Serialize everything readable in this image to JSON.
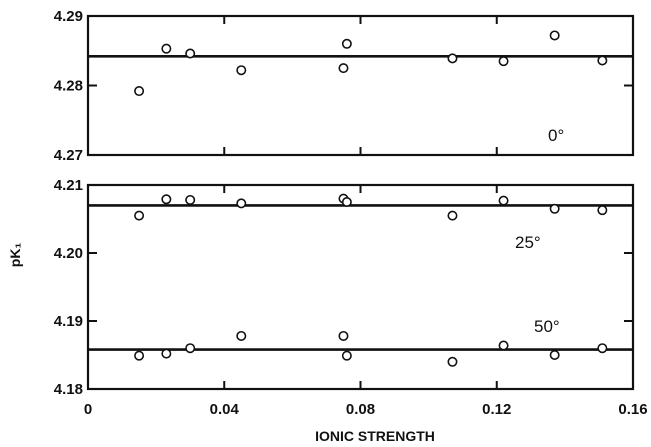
{
  "chart_data": {
    "type": "scatter",
    "xlabel": "IONIC STRENGTH",
    "ylabel": "pK₁",
    "xlim": [
      0,
      0.16
    ],
    "x_ticks": [
      0,
      0.04,
      0.08,
      0.12,
      0.16
    ],
    "x_tick_labels": [
      "0",
      "0.04",
      "0.08",
      "0.12",
      "0.16"
    ],
    "grid": false,
    "legend": "none",
    "panels": [
      {
        "ylim": [
          4.27,
          4.29
        ],
        "y_ticks": [
          4.27,
          4.28,
          4.29
        ],
        "y_tick_labels": [
          "4.27",
          "4.28",
          "4.29"
        ],
        "series": [
          {
            "name": "0°",
            "fit_line": 4.2842,
            "points": [
              [
                0.015,
                4.2792
              ],
              [
                0.023,
                4.2853
              ],
              [
                0.03,
                4.2846
              ],
              [
                0.045,
                4.2822
              ],
              [
                0.075,
                4.2825
              ],
              [
                0.076,
                4.286
              ],
              [
                0.107,
                4.2839
              ],
              [
                0.122,
                4.2835
              ],
              [
                0.137,
                4.2872
              ],
              [
                0.151,
                4.2836
              ]
            ]
          }
        ]
      },
      {
        "ylim": [
          4.18,
          4.21
        ],
        "y_ticks": [
          4.18,
          4.19,
          4.2,
          4.21
        ],
        "y_tick_labels": [
          "4.18",
          "4.19",
          "4.20",
          "4.21"
        ],
        "series": [
          {
            "name": "25°",
            "fit_line": 4.207,
            "points": [
              [
                0.015,
                4.2055
              ],
              [
                0.023,
                4.2079
              ],
              [
                0.03,
                4.2078
              ],
              [
                0.045,
                4.2073
              ],
              [
                0.075,
                4.208
              ],
              [
                0.076,
                4.2075
              ],
              [
                0.107,
                4.2055
              ],
              [
                0.122,
                4.2077
              ],
              [
                0.137,
                4.2065
              ],
              [
                0.151,
                4.2063
              ]
            ]
          },
          {
            "name": "50°",
            "fit_line": 4.1858,
            "points": [
              [
                0.015,
                4.1849
              ],
              [
                0.023,
                4.1852
              ],
              [
                0.03,
                4.186
              ],
              [
                0.045,
                4.1878
              ],
              [
                0.075,
                4.1878
              ],
              [
                0.076,
                4.1849
              ],
              [
                0.107,
                4.184
              ],
              [
                0.122,
                4.1864
              ],
              [
                0.137,
                4.185
              ],
              [
                0.151,
                4.186
              ]
            ]
          }
        ]
      }
    ]
  }
}
